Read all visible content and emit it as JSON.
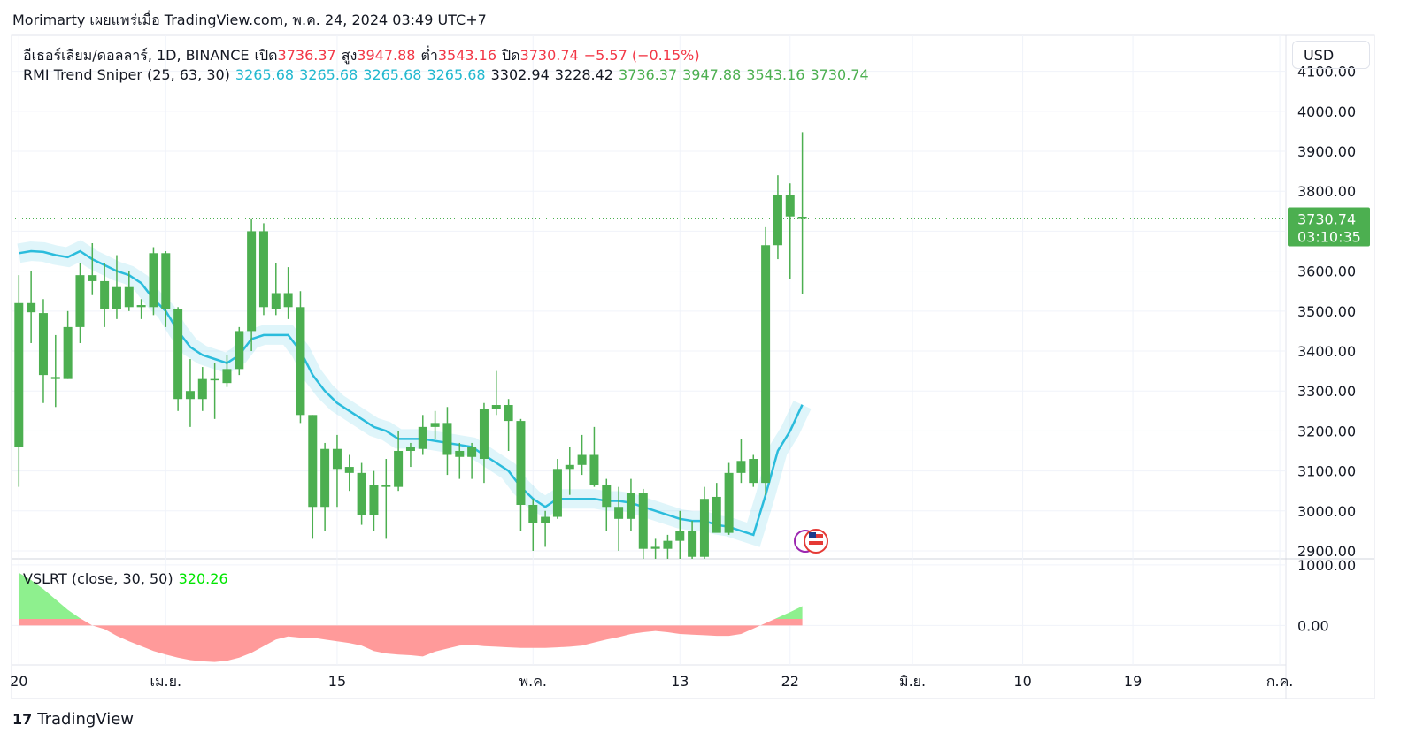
{
  "header": {
    "text": "Morimarty เผยแพร่เมื่อ TradingView.com, พ.ค. 24, 2024 03:49 UTC+7"
  },
  "brand": "TradingView",
  "chart_data": {
    "type": "candlestick",
    "symbol": "อีเธอร์เลียม/ดอลลาร์, 1D, BINANCE",
    "ohlc_labels": [
      "เปิด",
      "สูง",
      "ต่ำ",
      "ปิด"
    ],
    "change": "−5.57 (−0.15%)",
    "currency": "USD",
    "countdown": "03:10:35",
    "candle_color": "#4caf50",
    "price_line_color": "#4caf50",
    "open": [
      3160,
      3520,
      3495,
      3335,
      3330,
      3460,
      3590,
      3575,
      3505,
      3560,
      3510,
      3510,
      3645,
      3505,
      3300,
      3280,
      3330,
      3320,
      3355,
      3450,
      3700,
      3545,
      3545,
      3510,
      3240,
      3010,
      3155,
      3110,
      3095,
      2990,
      3065,
      3060,
      3150,
      3155,
      3210,
      3220,
      3150,
      3135,
      3130,
      3255,
      3265,
      3225,
      3015,
      2970,
      2985,
      3105,
      3115,
      3140,
      3065,
      3010,
      2980,
      3045,
      2910,
      2905,
      2925,
      2950,
      2885,
      3035,
      2945,
      3095,
      3130,
      3070,
      3665,
      3790,
      3736.37
    ],
    "high": [
      3590,
      3600,
      3530,
      3440,
      3500,
      3620,
      3670,
      3620,
      3640,
      3600,
      3530,
      3660,
      3650,
      3510,
      3380,
      3360,
      3370,
      3390,
      3460,
      3730,
      3720,
      3620,
      3610,
      3550,
      3240,
      3170,
      3190,
      3140,
      3120,
      3100,
      3130,
      3200,
      3170,
      3240,
      3250,
      3260,
      3170,
      3170,
      3270,
      3350,
      3280,
      3230,
      3030,
      3000,
      3130,
      3160,
      3190,
      3210,
      3080,
      3060,
      3080,
      3055,
      2930,
      2940,
      3000,
      2975,
      3060,
      3070,
      3120,
      3180,
      3140,
      3710,
      3840,
      3820,
      3947.88
    ],
    "low": [
      3060,
      3420,
      3270,
      3260,
      3330,
      3420,
      3540,
      3460,
      3480,
      3500,
      3480,
      3490,
      3460,
      3250,
      3210,
      3250,
      3230,
      3310,
      3340,
      3400,
      3490,
      3490,
      3480,
      3220,
      2930,
      2950,
      3010,
      3050,
      2965,
      2950,
      2930,
      3050,
      3110,
      3140,
      3180,
      3090,
      3080,
      3080,
      3070,
      3240,
      3150,
      2950,
      2900,
      2910,
      2980,
      3040,
      3090,
      3060,
      2950,
      2900,
      2950,
      2870,
      2880,
      2880,
      2870,
      2870,
      2870,
      2950,
      2940,
      3070,
      3060,
      3040,
      3630,
      3580,
      3543.16
    ],
    "close": [
      3520,
      3497,
      3340,
      3330,
      3460,
      3590,
      3575,
      3505,
      3560,
      3510,
      3515,
      3645,
      3505,
      3280,
      3280,
      3330,
      3330,
      3355,
      3450,
      3700,
      3510,
      3505,
      3510,
      3240,
      3010,
      3155,
      3105,
      3095,
      2990,
      3065,
      3060,
      3150,
      3160,
      3210,
      3220,
      3140,
      3135,
      3160,
      3255,
      3265,
      3225,
      3015,
      2970,
      2985,
      3105,
      3115,
      3140,
      3065,
      3010,
      2980,
      3045,
      2905,
      2905,
      2925,
      2950,
      2885,
      3030,
      2945,
      3095,
      3125,
      3070,
      3665,
      3790,
      3737,
      3730.74
    ],
    "ylim": [
      2880,
      4190
    ],
    "yticks": [
      {
        "value": 2900,
        "label": "2900.00"
      },
      {
        "value": 3000,
        "label": "3000.00"
      },
      {
        "value": 3100,
        "label": "3100.00"
      },
      {
        "value": 3200,
        "label": "3200.00"
      },
      {
        "value": 3300,
        "label": "3300.00"
      },
      {
        "value": 3400,
        "label": "3400.00"
      },
      {
        "value": 3500,
        "label": "3500.00"
      },
      {
        "value": 3600,
        "label": "3600.00"
      },
      {
        "value": 3700,
        "label": "3700.00"
      },
      {
        "value": 3800,
        "label": "3800.00"
      },
      {
        "value": 3900,
        "label": "3900.00"
      },
      {
        "value": 4000,
        "label": "4000.00"
      },
      {
        "value": 4100,
        "label": "4100.00"
      }
    ],
    "xlim": [
      -0.6,
      103.5
    ],
    "xticks": [
      {
        "value": 0,
        "label": "20"
      },
      {
        "value": 12,
        "label": "เม.ย."
      },
      {
        "value": 26,
        "label": "15"
      },
      {
        "value": 42,
        "label": "พ.ค."
      },
      {
        "value": 54,
        "label": "13"
      },
      {
        "value": 63,
        "label": "22"
      },
      {
        "value": 73,
        "label": "มิ.ย."
      },
      {
        "value": 82,
        "label": "10"
      },
      {
        "value": 91,
        "label": "19"
      },
      {
        "value": 103,
        "label": "ก.ค."
      }
    ],
    "grid": true,
    "rmi": {
      "name": "RMI Trend Sniper (25, 63, 30)",
      "color": "#2bbcdc",
      "legend_values": [
        3265.68,
        3265.68,
        3265.68,
        3265.68,
        3302.94,
        3228.42,
        3736.37,
        3947.88,
        3543.16,
        3730.74
      ],
      "legend_colors": [
        "#22b8cf",
        "#22b8cf",
        "#22b8cf",
        "#22b8cf",
        "#131722",
        "#131722",
        "#4caf50",
        "#4caf50",
        "#4caf50",
        "#4caf50"
      ],
      "values": [
        3645,
        3650,
        3648,
        3640,
        3635,
        3650,
        3630,
        3615,
        3600,
        3590,
        3570,
        3530,
        3500,
        3450,
        3410,
        3390,
        3380,
        3370,
        3390,
        3430,
        3440,
        3440,
        3440,
        3400,
        3340,
        3300,
        3270,
        3250,
        3230,
        3210,
        3200,
        3180,
        3180,
        3180,
        3175,
        3170,
        3165,
        3160,
        3140,
        3120,
        3100,
        3060,
        3030,
        3010,
        3030,
        3030,
        3030,
        3030,
        3025,
        3025,
        3020,
        3010,
        3000,
        2990,
        2980,
        2975,
        2975,
        2965,
        2960,
        2950,
        2940,
        3040,
        3150,
        3200,
        3265.68
      ]
    },
    "vslrt": {
      "name": "VSLRT (close, 30, 50)",
      "legend_value": 320.26,
      "legend_color": "#00e600",
      "positive_color": "#8ef08e",
      "negative_color": "#ff9a9a",
      "values": [
        870,
        750,
        600,
        430,
        260,
        120,
        0,
        -60,
        -170,
        -260,
        -340,
        -420,
        -480,
        -530,
        -570,
        -590,
        -600,
        -580,
        -530,
        -450,
        -340,
        -230,
        -180,
        -200,
        -200,
        -230,
        -260,
        -290,
        -330,
        -420,
        -460,
        -480,
        -490,
        -510,
        -430,
        -380,
        -330,
        -320,
        -340,
        -350,
        -360,
        -370,
        -370,
        -370,
        -360,
        -350,
        -330,
        -280,
        -230,
        -190,
        -140,
        -110,
        -90,
        -110,
        -140,
        -150,
        -160,
        -170,
        -170,
        -140,
        -50,
        40,
        130,
        220,
        320.26
      ],
      "ylim": [
        -650,
        1100
      ],
      "yticks": [
        {
          "value": 1000,
          "label": "1000.00"
        },
        {
          "value": 0,
          "label": "0.00"
        }
      ]
    }
  }
}
